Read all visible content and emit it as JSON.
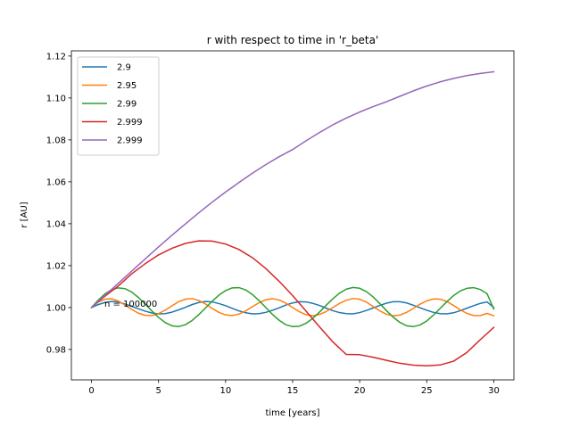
{
  "chart_data": {
    "type": "line",
    "title": "r with respect to time in 'r_beta'",
    "xlabel": "time [years]",
    "ylabel": "r [AU]",
    "xlim": [
      -1.5,
      31.5
    ],
    "ylim": [
      0.9655,
      1.1225
    ],
    "xticks": [
      0,
      5,
      10,
      15,
      20,
      25,
      30
    ],
    "xtick_labels": [
      "0",
      "5",
      "10",
      "15",
      "20",
      "25",
      "30"
    ],
    "yticks": [
      0.98,
      1.0,
      1.02,
      1.04,
      1.06,
      1.08,
      1.1,
      1.12
    ],
    "ytick_labels": [
      "0.98",
      "1.00",
      "1.02",
      "1.04",
      "1.06",
      "1.08",
      "1.10",
      "1.12"
    ],
    "grid": false,
    "legend_position": "top-left",
    "annotation": {
      "text": "n = 100000",
      "x": 1.0,
      "y": 1.0
    },
    "series": [
      {
        "name": "2.9",
        "color": "#1f77b4",
        "x": [
          0,
          0.5,
          1,
          1.5,
          2,
          2.5,
          3,
          3.5,
          4,
          4.5,
          5,
          5.5,
          6,
          6.5,
          7,
          7.5,
          8,
          8.5,
          9,
          9.5,
          10,
          10.5,
          11,
          11.5,
          12,
          12.5,
          13,
          13.5,
          14,
          14.5,
          15,
          15.5,
          16,
          16.5,
          17,
          17.5,
          18,
          18.5,
          19,
          19.5,
          20,
          20.5,
          21,
          21.5,
          22,
          22.5,
          23,
          23.5,
          24,
          24.5,
          25,
          25.5,
          26,
          26.5,
          27,
          27.5,
          28,
          28.5,
          29,
          29.5,
          30
        ],
        "y": [
          1.0,
          1.0014,
          1.0024,
          1.0029,
          1.0026,
          1.0017,
          1.0006,
          0.9994,
          0.9983,
          0.9974,
          0.997,
          0.9971,
          0.9978,
          0.9989,
          1.0001,
          1.0014,
          1.0024,
          1.0029,
          1.0027,
          1.0019,
          1.0009,
          0.9996,
          0.9984,
          0.9975,
          0.997,
          0.9971,
          0.9977,
          0.9987,
          0.9999,
          1.0012,
          1.0022,
          1.0028,
          1.0027,
          1.002,
          1.001,
          0.9997,
          0.9985,
          0.9976,
          0.9971,
          0.997,
          0.9976,
          0.9986,
          0.9998,
          1.001,
          1.0021,
          1.0028,
          1.0028,
          1.0022,
          1.0011,
          0.9999,
          0.9987,
          0.9977,
          0.9971,
          0.997,
          0.9975,
          0.9985,
          0.9997,
          1.0009,
          1.002,
          1.0027,
          1.0
        ]
      },
      {
        "name": "2.95",
        "color": "#ff7f0e",
        "x": [
          0,
          0.5,
          1,
          1.5,
          2,
          2.5,
          3,
          3.5,
          4,
          4.5,
          5,
          5.5,
          6,
          6.5,
          7,
          7.5,
          8,
          8.5,
          9,
          9.5,
          10,
          10.5,
          11,
          11.5,
          12,
          12.5,
          13,
          13.5,
          14,
          14.5,
          15,
          15.5,
          16,
          16.5,
          17,
          17.5,
          18,
          18.5,
          19,
          19.5,
          20,
          20.5,
          21,
          21.5,
          22,
          22.5,
          23,
          23.5,
          24,
          24.5,
          25,
          25.5,
          26,
          26.5,
          27,
          27.5,
          28,
          28.5,
          29,
          29.5,
          30
        ],
        "y": [
          1.0,
          1.0026,
          1.004,
          1.0042,
          1.0031,
          1.0012,
          0.9991,
          0.9973,
          0.9963,
          0.9962,
          0.9971,
          0.9988,
          1.0008,
          1.0028,
          1.004,
          1.0043,
          1.0034,
          1.0017,
          0.9996,
          0.9977,
          0.9965,
          0.9962,
          0.9969,
          0.9984,
          1.0004,
          1.0023,
          1.0037,
          1.0042,
          1.0036,
          1.0021,
          1.0,
          0.998,
          0.9966,
          0.9961,
          0.9967,
          0.9981,
          1.0,
          1.002,
          1.0035,
          1.0043,
          1.004,
          1.0026,
          1.0005,
          0.9984,
          0.9968,
          0.9961,
          0.9964,
          0.9977,
          0.9996,
          1.0016,
          1.0032,
          1.0041,
          1.004,
          1.0029,
          1.001,
          0.9989,
          0.9972,
          0.9962,
          0.9962,
          0.9972,
          0.9961
        ]
      },
      {
        "name": "2.99",
        "color": "#2ca02c",
        "x": [
          0,
          0.5,
          1,
          1.5,
          2,
          2.5,
          3,
          3.5,
          4,
          4.5,
          5,
          5.5,
          6,
          6.5,
          7,
          7.5,
          8,
          8.5,
          9,
          9.5,
          10,
          10.5,
          11,
          11.5,
          12,
          12.5,
          13,
          13.5,
          14,
          14.5,
          15,
          15.5,
          16,
          16.5,
          17,
          17.5,
          18,
          18.5,
          19,
          19.5,
          20,
          20.5,
          21,
          21.5,
          22,
          22.5,
          23,
          23.5,
          24,
          24.5,
          25,
          25.5,
          26,
          26.5,
          27,
          27.5,
          28,
          28.5,
          29,
          29.5,
          30
        ],
        "y": [
          1.0,
          1.0035,
          1.0065,
          1.0085,
          1.0094,
          1.009,
          1.0074,
          1.0048,
          1.0017,
          0.9984,
          0.9953,
          0.9928,
          0.9913,
          0.9909,
          0.9918,
          0.9938,
          0.9966,
          0.9998,
          1.003,
          1.0059,
          1.0081,
          1.0094,
          1.0095,
          1.0084,
          1.0062,
          1.0033,
          1.0,
          0.9967,
          0.9939,
          0.9918,
          0.9909,
          0.9911,
          0.9925,
          0.9948,
          0.9978,
          1.0011,
          1.0042,
          1.0069,
          1.0088,
          1.0096,
          1.0092,
          1.0076,
          1.0051,
          1.0019,
          0.9985,
          0.9954,
          0.9929,
          0.9913,
          0.9909,
          0.9917,
          0.9936,
          0.9964,
          0.9996,
          1.0028,
          1.0057,
          1.0079,
          1.0092,
          1.0095,
          1.0086,
          1.0066,
          0.9993
        ]
      },
      {
        "name": "2.999",
        "color": "#d62728",
        "x": [
          0,
          1,
          2,
          3,
          4,
          5,
          6,
          7,
          8,
          9,
          10,
          11,
          12,
          13,
          14,
          15,
          16,
          17,
          18,
          19,
          20,
          21,
          22,
          23,
          24,
          25,
          26,
          27,
          28,
          29,
          30
        ],
        "y": [
          1.0,
          1.0054,
          1.0103,
          1.0161,
          1.0209,
          1.0251,
          1.0283,
          1.0306,
          1.0318,
          1.0317,
          1.0303,
          1.0277,
          1.0238,
          1.0186,
          1.0125,
          1.0057,
          0.9983,
          0.9908,
          0.9836,
          0.9776,
          0.9775,
          0.9763,
          0.9748,
          0.9734,
          0.9725,
          0.9722,
          0.9726,
          0.9744,
          0.9786,
          0.9847,
          0.9905
        ]
      },
      {
        "name": "2.999",
        "color": "#9467bd",
        "x": [
          0,
          1,
          2,
          3,
          4,
          5,
          6,
          7,
          8,
          9,
          10,
          11,
          12,
          13,
          14,
          15,
          16,
          17,
          18,
          19,
          20,
          21,
          22,
          23,
          24,
          25,
          26,
          27,
          28,
          29,
          30
        ],
        "y": [
          1.0,
          1.0058,
          1.0116,
          1.0174,
          1.0232,
          1.0289,
          1.0345,
          1.0399,
          1.0452,
          1.0503,
          1.0551,
          1.0597,
          1.0641,
          1.0682,
          1.072,
          1.0754,
          1.0796,
          1.0835,
          1.0872,
          1.0904,
          1.0933,
          1.0959,
          1.0982,
          1.1008,
          1.1034,
          1.1057,
          1.1077,
          1.1093,
          1.1107,
          1.1117,
          1.1125
        ]
      }
    ]
  }
}
